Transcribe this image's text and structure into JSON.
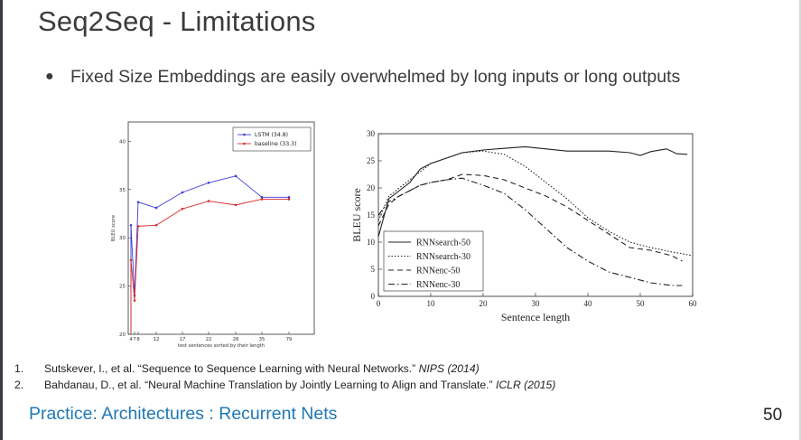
{
  "slide": {
    "title": "Seq2Seq - Limitations",
    "bullet": "Fixed Size Embeddings are easily overwhelmed by long inputs or long outputs",
    "bullet_symbol": "●",
    "references": [
      {
        "num": "1.",
        "text": "Sutskever, I., et al. “Sequence to Sequence Learning with Neural Networks.” ",
        "venue": "NIPS (2014)"
      },
      {
        "num": "2.",
        "text": "Bahdanau, D., et al. “Neural Machine Translation by Jointly Learning to Align and Translate.” ",
        "venue": "ICLR (2015)"
      }
    ],
    "footer_link": "Practice: Architectures : Recurrent Nets",
    "page_number": "50"
  },
  "colors": {
    "link": "#1f78b4",
    "lstm": "#3b3bd9",
    "baseline": "#d92b2b"
  },
  "chart_data": [
    {
      "type": "line",
      "xlabel": "test sentences sorted by their length",
      "ylabel": "BLEU score",
      "categories": [
        "4",
        "7",
        "8",
        "12",
        "17",
        "22",
        "28",
        "35",
        "79"
      ],
      "ylim": [
        20,
        42
      ],
      "yticks": [
        "20",
        "25",
        "30",
        "35",
        "40"
      ],
      "legend_position": "top-right",
      "series": [
        {
          "name": "LSTM (34.8)",
          "values": [
            31.3,
            24.0,
            33.7,
            33.1,
            34.7,
            35.7,
            36.4,
            34.2,
            34.2
          ]
        },
        {
          "name": "baseline (33.3)",
          "values": [
            27.7,
            23.5,
            31.2,
            31.3,
            33.0,
            33.8,
            33.4,
            34.0,
            34.0
          ]
        }
      ]
    },
    {
      "type": "line",
      "xlabel": "Sentence length",
      "ylabel": "BLEU score",
      "xlim": [
        0,
        60
      ],
      "ylim": [
        0,
        30
      ],
      "xticks": [
        "0",
        "10",
        "20",
        "30",
        "40",
        "50",
        "60"
      ],
      "yticks": [
        "0",
        "5",
        "10",
        "15",
        "20",
        "25",
        "30"
      ],
      "legend_position": "bottom-left",
      "series": [
        {
          "name": "RNNsearch-50",
          "x": [
            0,
            2,
            4,
            6,
            8,
            10,
            13,
            16,
            20,
            24,
            28,
            32,
            36,
            40,
            44,
            48,
            50,
            52,
            55,
            57,
            59
          ],
          "values": [
            11,
            18,
            19.5,
            21,
            23.5,
            24.5,
            25.5,
            26.5,
            27,
            27.3,
            27.6,
            27.2,
            26.8,
            26.8,
            26.8,
            26.5,
            26.0,
            26.7,
            27.2,
            26.3,
            26.2
          ]
        },
        {
          "name": "RNNsearch-30",
          "x": [
            0,
            2,
            4,
            6,
            8,
            10,
            13,
            16,
            20,
            24,
            28,
            32,
            36,
            40,
            44,
            48,
            52,
            56,
            60
          ],
          "values": [
            14,
            18.5,
            20,
            21.5,
            23,
            24.5,
            25.5,
            26.5,
            26.8,
            26.2,
            24,
            21,
            18,
            14.5,
            12,
            10,
            9,
            8.2,
            7.5
          ]
        },
        {
          "name": "RNNenc-50",
          "x": [
            0,
            2,
            4,
            6,
            8,
            10,
            13,
            16,
            20,
            24,
            28,
            32,
            36,
            40,
            44,
            48,
            52,
            56,
            58
          ],
          "values": [
            13,
            17,
            18.5,
            19.5,
            20.5,
            21,
            21.5,
            22.5,
            22.3,
            21.5,
            20,
            18.5,
            16.5,
            14,
            11.5,
            9,
            8.5,
            7.5,
            6.5
          ]
        },
        {
          "name": "RNNenc-30",
          "x": [
            0,
            2,
            4,
            6,
            8,
            10,
            13,
            16,
            20,
            24,
            28,
            32,
            36,
            40,
            44,
            48,
            52,
            56,
            58
          ],
          "values": [
            15,
            17.5,
            18.5,
            19.5,
            20.5,
            21,
            21.5,
            21.8,
            20.5,
            19,
            16,
            12.5,
            9,
            6.5,
            4.5,
            3.5,
            2.5,
            2,
            2
          ]
        }
      ]
    }
  ]
}
